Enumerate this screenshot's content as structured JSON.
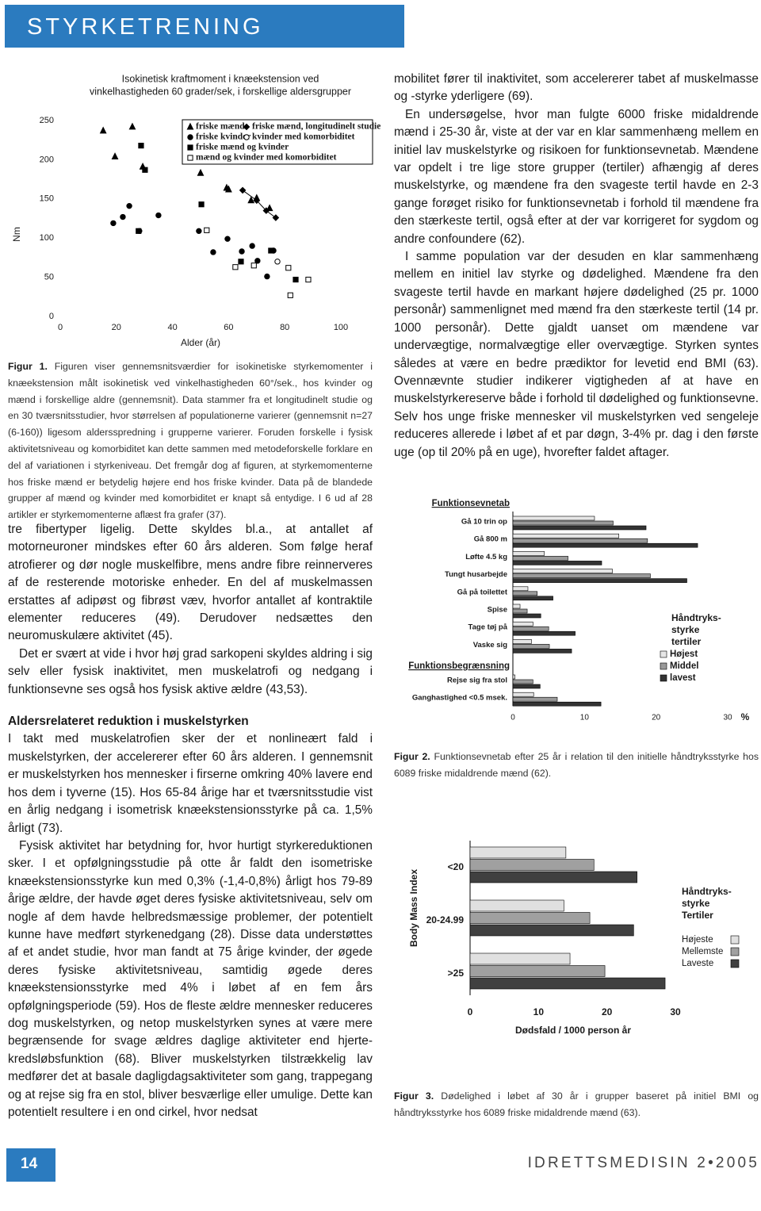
{
  "header": {
    "title": "STYRKETRENING"
  },
  "chart_data": [
    {
      "type": "scatter",
      "title": [
        "Isokinetisk kraftmoment i knæekstension ved",
        "vinkelhastigheden 60 grader/sek, i forskellige aldersgrupper"
      ],
      "xlabel": "Alder (år)",
      "ylabel": "Nm",
      "xlim": [
        0,
        100
      ],
      "ylim": [
        0,
        250
      ],
      "xticks": [
        0,
        20,
        40,
        60,
        80,
        100
      ],
      "yticks": [
        0,
        50,
        100,
        150,
        200,
        250
      ],
      "series": [
        {
          "name": "friske mænd",
          "marker": "triangle",
          "filled": true,
          "color": "#000000",
          "x": [
            15.3,
            25.7,
            19.5,
            29.4,
            50,
            59.3,
            60,
            68,
            70,
            74.6
          ],
          "y": [
            237,
            242,
            204,
            191,
            183,
            164,
            162,
            148,
            151,
            138
          ]
        },
        {
          "name": "friske mænd, longitudinelt studie",
          "marker": "diamond",
          "filled": true,
          "line": true,
          "color": "#000000",
          "x": [
            65,
            70,
            73.4,
            76.8
          ],
          "y": [
            161,
            148,
            135,
            126
          ]
        },
        {
          "name": "friske kvinder",
          "marker": "circle",
          "filled": true,
          "color": "#000000",
          "x": [
            18.9,
            22.3,
            24.6,
            28.2,
            35,
            49.4,
            54.5,
            59.6,
            64.7,
            68.4,
            70.3,
            73.7,
            76
          ],
          "y": [
            119,
            127,
            141,
            109,
            129,
            109,
            82,
            99,
            83,
            90,
            71,
            51,
            84
          ]
        },
        {
          "name": "kvinder med komorbiditet",
          "marker": "circle",
          "filled": false,
          "color": "#000000",
          "x": [
            77.4
          ],
          "y": [
            70
          ]
        },
        {
          "name": "friske mænd og kvinder",
          "marker": "square",
          "filled": true,
          "color": "#000000",
          "x": [
            28.8,
            30.2,
            50.3,
            27.9,
            64.4,
            75.1,
            83.9
          ],
          "y": [
            218,
            187,
            143,
            109,
            70,
            84,
            47
          ]
        },
        {
          "name": "mænd og kvinder med komorbiditet",
          "marker": "square",
          "filled": false,
          "color": "#000000",
          "x": [
            52.2,
            62.4,
            69,
            81.3,
            88.4,
            82
          ],
          "y": [
            110,
            63,
            65,
            62,
            47,
            27
          ]
        }
      ]
    },
    {
      "type": "hbar",
      "group_labels": [
        "Funktionsevnetab",
        "Funktionsbegrænsning"
      ],
      "categories": [
        "Gå 10 trin op",
        "Gå 800 m",
        "Løfte 4.5 kg",
        "Tungt husarbejde",
        "Gå på toilettet",
        "Spise",
        "Tage tøj på",
        "Vaske sig",
        "Rejse sig fra stol",
        "Ganghastighed <0.5 msek."
      ],
      "xlabel": "%",
      "xlim": [
        0,
        30
      ],
      "xticks": [
        0,
        10,
        20,
        30
      ],
      "legend_title": [
        "Håndtryks-",
        "styrke",
        "tertiler"
      ],
      "series": [
        {
          "name": "Højest",
          "color": "#e6e6e6",
          "values": [
            11.4,
            14.8,
            4.4,
            13.9,
            2.1,
            1,
            2.8,
            2.6,
            0.3,
            2.9
          ]
        },
        {
          "name": "Middel",
          "color": "#9a9a9a",
          "values": [
            14,
            18.8,
            7.7,
            19.2,
            3.4,
            2,
            5,
            5.1,
            2.8,
            6.2
          ]
        },
        {
          "name": "lavest",
          "color": "#333333",
          "values": [
            18.6,
            25.8,
            12.4,
            24.3,
            5.6,
            3.9,
            8.7,
            8.2,
            3.8,
            12.3
          ]
        }
      ]
    },
    {
      "type": "hbar",
      "categories": [
        "<20",
        "20-24.99",
        ">25"
      ],
      "ylabel": "Body Mass Index",
      "xlabel": "Dødsfald / 1000 person år",
      "xlim": [
        0,
        30
      ],
      "xticks": [
        0,
        10,
        20,
        30
      ],
      "legend_title": [
        "Håndtryks-",
        "styrke",
        "Tertiler"
      ],
      "series": [
        {
          "name": "Højeste",
          "color": "#e0e0e0",
          "values": [
            14,
            13.7,
            14.6
          ]
        },
        {
          "name": "Mellemste",
          "color": "#a0a0a0",
          "values": [
            18.1,
            17.5,
            19.7
          ]
        },
        {
          "name": "Laveste",
          "color": "#404040",
          "values": [
            24.4,
            23.9,
            28.5
          ]
        }
      ]
    }
  ],
  "captions": [
    {
      "label": "Figur 1.",
      "text": "Figuren viser gennemsnitsværdier for isokinetiske styrkemomenter i knæekstension målt isokinetisk ved vinkelhastigheden 60°/sek., hos kvinder og mænd i forskellige aldre (gennemsnit). Data stammer fra et longitudinelt studie og en 30 tværsnitsstudier, hvor størrelsen af populationerne varierer (gennemsnit n=27 (6-160)) ligesom aldersspredning i grupperne varierer. Foruden forskelle i fysisk aktivitetsniveau og komorbiditet kan dette sammen med metodeforskelle forklare en del af variationen i styrkeniveau. Det fremgår dog af figuren, at styrkemomenterne hos friske mænd er betydelig højere end hos friske kvinder. Data på de blandede grupper af mænd og kvinder med komorbiditet er knapt så entydige. I 6 ud af 28 artikler er styrkemomenterne aflæst fra grafer (37)."
    },
    {
      "label": "Figur 2.",
      "text": "Funktionsevnetab efter 25 år i relation til den initielle håndtryksstyrke hos 6089 friske midaldrende mænd (62)."
    },
    {
      "label": "Figur 3.",
      "text": "Dødelighed i løbet af 30 år i grupper baseret på initiel BMI og håndtryksstyrke hos 6089 friske midaldrende mænd (63)."
    }
  ],
  "left_column": {
    "paragraphs_before": [
      "tre fibertyper ligelig. Dette skyldes bl.a., at antallet af motorneuroner mindskes efter 60 års alderen. Som følge heraf atrofierer og dør nogle muskelfibre, mens andre fibre reinnerveres af de resterende motoriske enheder. En del af muskelmassen erstattes af adipøst og fibrøst væv, hvorfor antallet af kontraktile elementer reduceres (49). Derudover nedsættes den neuromuskulære aktivitet (45).",
      "Det er svært at vide i hvor høj grad sarkopeni skyldes aldring i sig selv eller fysisk inaktivitet, men muskelatrofi og nedgang i funktionsevne ses også hos fysisk aktive ældre (43,53)."
    ],
    "heading": "Aldersrelateret reduktion i muskelstyrken",
    "paragraphs_after": [
      "I takt med muskelatrofien sker der et nonlineært fald i muskelstyrken, der accelererer efter 60 års alderen. I gennemsnit er muskelstyrken hos mennesker i firserne omkring 40% lavere end hos dem i tyverne (15). Hos 65-84 årige har et tværsnitsstudie vist en årlig nedgang i isometrisk knæekstensionsstyrke på ca. 1,5% årligt (73).",
      "Fysisk aktivitet har betydning for, hvor hurtigt styrkereduktionen sker. I et opfølgningsstudie på otte år faldt den isometriske knæekstensionsstyrke kun med 0,3% (-1,4-0,8%) årligt hos 79-89 årige ældre, der havde øget deres fysiske aktivitetsniveau, selv om nogle af dem havde helbredsmæssige problemer, der potentielt kunne have medført styrkenedgang (28). Disse data understøttes af et andet studie, hvor man fandt at 75 årige kvinder, der øgede deres fysiske aktivitetsniveau, samtidig øgede deres knæekstensionsstyrke med 4% i løbet af en fem års opfølgningsperiode (59). Hos de fleste ældre mennesker reduceres dog muskelstyrken, og netop muskelstyrken synes at være mere begrænsende for svage ældres daglige aktiviteter end hjerte-kredsløbsfunktion (68). Bliver muskelstyrken tilstrækkelig lav medfører det at basale dagligdagsaktiviteter som gang, trappegang og at rejse sig fra en stol, bliver besværlige eller umulige. Dette kan potentielt resultere i en ond cirkel, hvor nedsat"
    ]
  },
  "right_column": {
    "paragraphs": [
      "mobilitet fører til inaktivitet, som accelererer tabet af muskelmasse og -styrke yderligere (69).",
      "En undersøgelse, hvor man fulgte 6000 friske midaldrende mænd i 25-30 år, viste at der var en klar sammenhæng mellem en initiel lav muskelstyrke og risikoen for funktionsevnetab. Mændene var opdelt i tre lige store grupper (tertiler) afhængig af deres muskelstyrke, og mændene fra den svageste tertil havde en 2-3 gange forøget risiko for funktionsevnetab i forhold til mændene fra den stærkeste tertil, også efter at der var korrigeret for sygdom og andre confoundere (62).",
      "I samme population var der desuden en klar sammenhæng mellem en initiel lav styrke og dødelighed. Mændene fra den svageste tertil havde en markant højere dødelighed (25 pr. 1000 personår) sammenlignet med mænd fra den stærkeste tertil (14 pr. 1000 personår). Dette gjaldt uanset om mændene var undervægtige, normalvægtige eller overvægtige. Styrken syntes således at være en bedre prædiktor for levetid end BMI (63). Ovennævnte studier indikerer vigtigheden af at have en muskelstyrkereserve både i forhold til dødelighed og funktionsevne. Selv hos unge friske mennesker vil muskelstyrken ved sengeleje reduceres allerede i løbet af et par døgn, 3-4% pr. dag i den første uge (op til 20% på en uge), hvorefter faldet aftager."
    ]
  },
  "footer": {
    "page_number": "14",
    "journal": "IDRETTSMEDISIN 2•2005"
  }
}
